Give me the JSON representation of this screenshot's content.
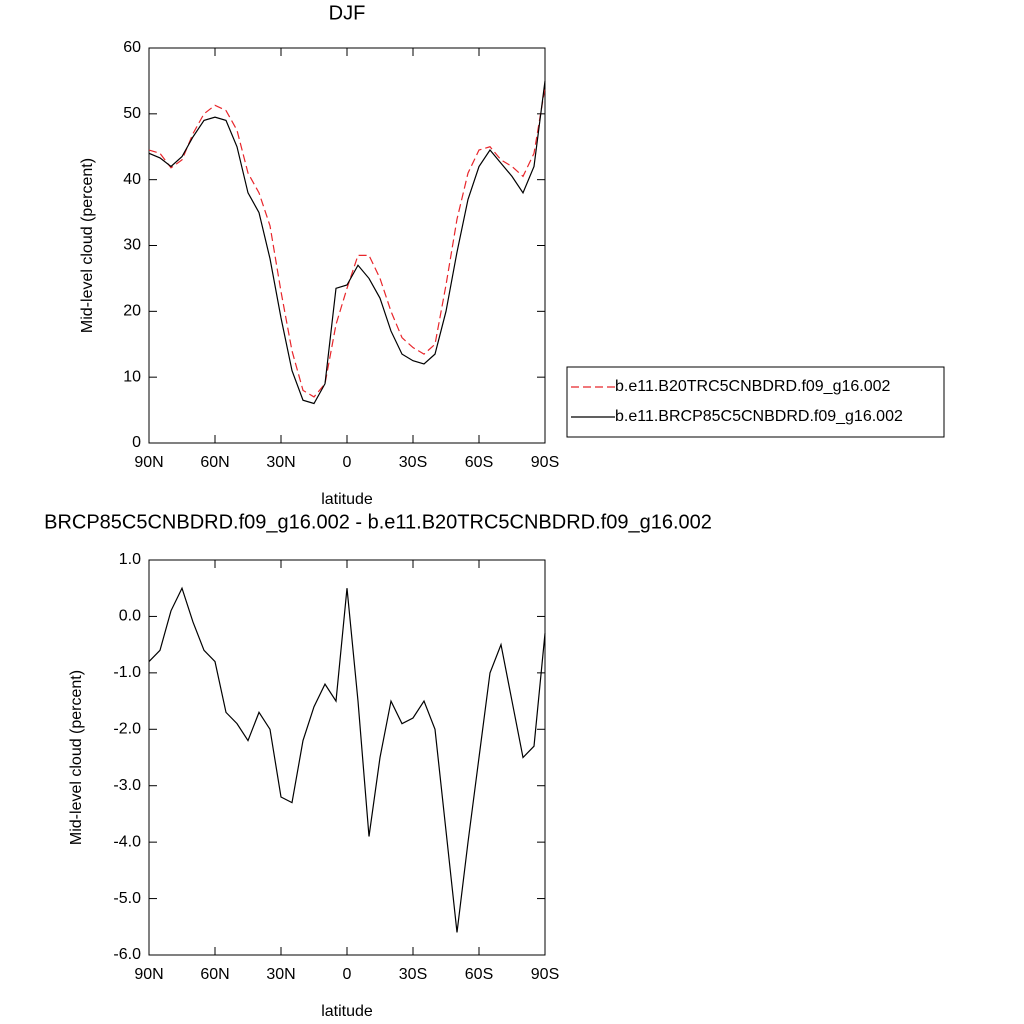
{
  "chart_data": [
    {
      "type": "line",
      "title": "DJF",
      "x_label": "latitude",
      "y_label": "Mid-level cloud (percent)",
      "x": [
        90,
        85,
        80,
        75,
        70,
        65,
        60,
        55,
        50,
        45,
        40,
        35,
        30,
        25,
        20,
        15,
        10,
        5,
        0,
        -5,
        -10,
        -15,
        -20,
        -25,
        -30,
        -35,
        -40,
        -45,
        -50,
        -55,
        -60,
        -65,
        -70,
        -75,
        -80,
        -85,
        -90
      ],
      "xlim": [
        90,
        -90
      ],
      "xticks": [
        {
          "value": 90,
          "label": "90N"
        },
        {
          "value": 60,
          "label": "60N"
        },
        {
          "value": 30,
          "label": "30N"
        },
        0,
        {
          "value": -30,
          "label": "30S"
        },
        {
          "value": -60,
          "label": "60S"
        },
        {
          "value": -90,
          "label": "90S"
        }
      ],
      "ylim": [
        0,
        60
      ],
      "yticks": [
        0,
        10,
        20,
        30,
        40,
        50,
        60
      ],
      "series": [
        {
          "name": "b.e11.B20TRC5CNBDRD.f09_g16.002",
          "color": "#e8262b",
          "dash": true,
          "values": [
            44.5,
            44,
            41.8,
            43,
            47,
            50,
            51.3,
            50.5,
            47.5,
            41,
            38,
            33,
            23,
            14,
            8,
            7,
            9,
            18,
            23.5,
            28.5,
            28.5,
            25,
            20,
            16,
            14.5,
            13.5,
            15,
            24,
            34,
            41,
            44.5,
            45,
            43,
            42,
            40.5,
            44,
            54
          ]
        },
        {
          "name": "b.e11.BRCP85C5CNBDRD.f09_g16.002",
          "color": "#000000",
          "dash": false,
          "values": [
            44,
            43.3,
            42,
            43.5,
            46.5,
            49,
            49.5,
            49,
            45,
            38,
            35,
            28,
            19,
            11,
            6.5,
            6,
            9,
            23.5,
            24,
            27,
            25,
            22,
            17,
            13.5,
            12.5,
            12,
            13.5,
            20,
            29,
            37,
            42,
            44.5,
            42.5,
            40.5,
            38,
            42,
            55
          ]
        }
      ]
    },
    {
      "type": "line",
      "title": "BRCP85C5CNBDRD.f09_g16.002 - b.e11.B20TRC5CNBDRD.f09_g16.002",
      "x_label": "latitude",
      "y_label": "Mid-level cloud (percent)",
      "x": [
        90,
        85,
        80,
        75,
        70,
        65,
        60,
        55,
        50,
        45,
        40,
        35,
        30,
        25,
        20,
        15,
        10,
        5,
        0,
        -5,
        -10,
        -15,
        -20,
        -25,
        -30,
        -35,
        -40,
        -45,
        -50,
        -55,
        -60,
        -65,
        -70,
        -75,
        -80,
        -85,
        -90
      ],
      "xlim": [
        90,
        -90
      ],
      "xticks": [
        {
          "value": 90,
          "label": "90N"
        },
        {
          "value": 60,
          "label": "60N"
        },
        {
          "value": 30,
          "label": "30N"
        },
        0,
        {
          "value": -30,
          "label": "30S"
        },
        {
          "value": -60,
          "label": "60S"
        },
        {
          "value": -90,
          "label": "90S"
        }
      ],
      "ylim": [
        -6,
        1
      ],
      "yticks": [
        {
          "value": -6,
          "label": "-6.0"
        },
        {
          "value": -5,
          "label": "-5.0"
        },
        {
          "value": -4,
          "label": "-4.0"
        },
        {
          "value": -3,
          "label": "-3.0"
        },
        {
          "value": -2,
          "label": "-2.0"
        },
        {
          "value": -1,
          "label": "-1.0"
        },
        {
          "value": 0,
          "label": "0.0"
        },
        {
          "value": 1,
          "label": "1.0"
        }
      ],
      "series": [
        {
          "color": "#000000",
          "dash": false,
          "values": [
            -0.8,
            -0.6,
            0.1,
            0.5,
            -0.1,
            -0.6,
            -0.8,
            -1.7,
            -1.9,
            -2.2,
            -1.7,
            -2.0,
            -3.2,
            -3.3,
            -2.2,
            -1.6,
            -1.2,
            -1.5,
            0.5,
            -1.5,
            -3.9,
            -2.5,
            -1.5,
            -1.9,
            -1.8,
            -1.5,
            -2.0,
            -3.8,
            -5.6,
            -4.0,
            -2.5,
            -1.0,
            -0.5,
            -1.5,
            -2.5,
            -2.3,
            -0.3
          ]
        }
      ]
    }
  ]
}
